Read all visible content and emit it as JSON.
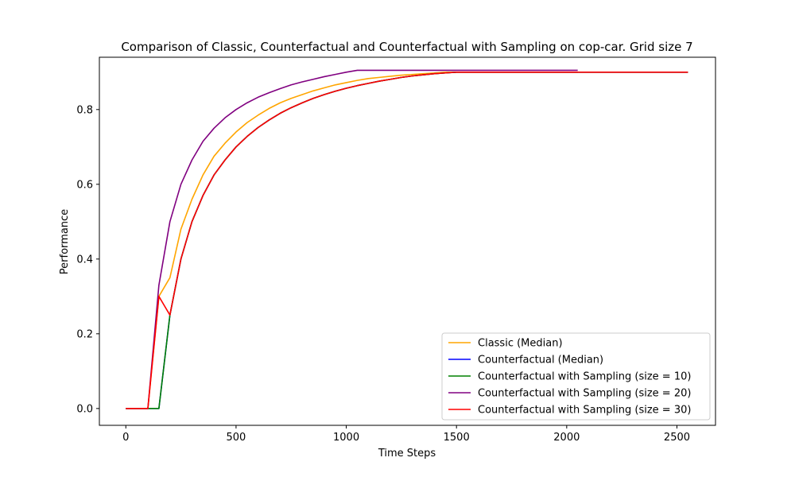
{
  "chart_data": {
    "type": "line",
    "title": "Comparison of Classic, Counterfactual and Counterfactual with Sampling on cop-car. Grid size 7",
    "xlabel": "Time Steps",
    "ylabel": "Performance",
    "xlim": [
      -120,
      2675
    ],
    "ylim": [
      -0.045,
      0.94
    ],
    "xticks": [
      0,
      500,
      1000,
      1500,
      2000,
      2500
    ],
    "yticks": [
      0.0,
      0.2,
      0.4,
      0.6,
      0.8
    ],
    "xtick_labels": [
      "0",
      "500",
      "1000",
      "1500",
      "2000",
      "2500"
    ],
    "ytick_labels": [
      "0.0",
      "0.2",
      "0.4",
      "0.6",
      "0.8"
    ],
    "grid": false,
    "legend_position": "lower-right",
    "series": [
      {
        "name": "Classic (Median)",
        "color": "#ffa500",
        "x": [
          0,
          100,
          150,
          200,
          250,
          300,
          350,
          400,
          450,
          500,
          550,
          600,
          650,
          700,
          750,
          800,
          850,
          900,
          950,
          1000,
          1050,
          1100,
          1150,
          1200,
          1250,
          1300,
          1350,
          1400,
          1450,
          1500,
          1550,
          1600,
          1650,
          1700,
          1750,
          1800,
          1850,
          1900,
          1950,
          2000,
          2050
        ],
        "y": [
          0.0,
          0.0,
          0.3,
          0.35,
          0.48,
          0.56,
          0.625,
          0.675,
          0.71,
          0.74,
          0.765,
          0.785,
          0.803,
          0.818,
          0.83,
          0.84,
          0.85,
          0.858,
          0.866,
          0.872,
          0.878,
          0.883,
          0.886,
          0.889,
          0.892,
          0.894,
          0.896,
          0.898,
          0.9,
          0.9,
          0.9,
          0.9,
          0.9,
          0.9,
          0.9,
          0.9,
          0.9,
          0.9,
          0.9,
          0.9,
          0.9
        ]
      },
      {
        "name": "Counterfactual (Median)",
        "color": "#0000ff",
        "x": [
          0,
          100,
          150,
          200,
          250,
          300,
          350,
          400,
          450,
          500,
          550,
          600,
          650,
          700,
          750,
          800,
          850,
          900,
          950,
          1000,
          1050,
          1100,
          1150,
          1200,
          1250,
          1300,
          1350,
          1400,
          1450,
          1500,
          1550,
          1600,
          1650,
          1700,
          1750,
          1800,
          1850,
          1900,
          1950,
          2000,
          2050,
          2100,
          2150,
          2200,
          2250,
          2300,
          2350,
          2400,
          2450,
          2500,
          2550
        ],
        "y": [
          0.0,
          0.0,
          0.0,
          0.25,
          0.4,
          0.5,
          0.57,
          0.625,
          0.665,
          0.7,
          0.728,
          0.752,
          0.772,
          0.79,
          0.805,
          0.818,
          0.83,
          0.84,
          0.849,
          0.857,
          0.864,
          0.87,
          0.876,
          0.881,
          0.886,
          0.89,
          0.893,
          0.896,
          0.898,
          0.9,
          0.9,
          0.9,
          0.9,
          0.9,
          0.9,
          0.9,
          0.9,
          0.9,
          0.9,
          0.9,
          0.9,
          0.9,
          0.9,
          0.9,
          0.9,
          0.9,
          0.9,
          0.9,
          0.9,
          0.9,
          0.9
        ]
      },
      {
        "name": "Counterfactual with Sampling (size = 10)",
        "color": "#008000",
        "x": [
          0,
          100,
          150,
          200,
          250,
          300,
          350,
          400,
          450,
          500,
          550,
          600,
          650,
          700,
          750,
          800,
          850,
          900,
          950,
          1000,
          1050,
          1100,
          1150,
          1200,
          1250,
          1300,
          1350,
          1400,
          1450,
          1500,
          1550,
          1600,
          1650,
          1700,
          1750,
          1800,
          1850,
          1900,
          1950,
          2000,
          2050,
          2100,
          2150,
          2200,
          2250,
          2300,
          2350,
          2400,
          2450,
          2500,
          2550
        ],
        "y": [
          0.0,
          0.0,
          0.0,
          0.25,
          0.4,
          0.5,
          0.57,
          0.625,
          0.665,
          0.7,
          0.728,
          0.752,
          0.772,
          0.79,
          0.805,
          0.818,
          0.83,
          0.84,
          0.849,
          0.857,
          0.864,
          0.87,
          0.876,
          0.881,
          0.886,
          0.89,
          0.893,
          0.896,
          0.898,
          0.9,
          0.9,
          0.9,
          0.9,
          0.9,
          0.9,
          0.9,
          0.9,
          0.9,
          0.9,
          0.9,
          0.9,
          0.9,
          0.9,
          0.9,
          0.9,
          0.9,
          0.9,
          0.9,
          0.9,
          0.9,
          0.9
        ]
      },
      {
        "name": "Counterfactual with Sampling (size = 20)",
        "color": "#800080",
        "x": [
          0,
          100,
          150,
          200,
          250,
          300,
          350,
          400,
          450,
          500,
          550,
          600,
          650,
          700,
          750,
          800,
          850,
          900,
          950,
          1000,
          1050,
          1100,
          1150,
          1200,
          1250,
          1300,
          1350,
          1400,
          1450,
          1500,
          1550,
          1600,
          1650,
          1700,
          1750,
          1800,
          1850,
          1900,
          1950,
          2000,
          2050
        ],
        "y": [
          0.0,
          0.0,
          0.33,
          0.5,
          0.6,
          0.665,
          0.715,
          0.75,
          0.778,
          0.8,
          0.818,
          0.833,
          0.845,
          0.856,
          0.866,
          0.874,
          0.881,
          0.888,
          0.894,
          0.9,
          0.905,
          0.905,
          0.905,
          0.905,
          0.905,
          0.905,
          0.905,
          0.905,
          0.905,
          0.905,
          0.905,
          0.905,
          0.905,
          0.905,
          0.905,
          0.905,
          0.905,
          0.905,
          0.905,
          0.905,
          0.905
        ]
      },
      {
        "name": "Counterfactual with Sampling (size = 30)",
        "color": "#ff0000",
        "x": [
          0,
          100,
          150,
          200,
          250,
          300,
          350,
          400,
          450,
          500,
          550,
          600,
          650,
          700,
          750,
          800,
          850,
          900,
          950,
          1000,
          1050,
          1100,
          1150,
          1200,
          1250,
          1300,
          1350,
          1400,
          1450,
          1500,
          1550,
          1600,
          1650,
          1700,
          1750,
          1800,
          1850,
          1900,
          1950,
          2000,
          2050,
          2100,
          2150,
          2200,
          2250,
          2300,
          2350,
          2400,
          2450,
          2500,
          2550
        ],
        "y": [
          0.0,
          0.0,
          0.3,
          0.25,
          0.4,
          0.5,
          0.57,
          0.625,
          0.665,
          0.7,
          0.728,
          0.752,
          0.772,
          0.79,
          0.805,
          0.818,
          0.83,
          0.84,
          0.849,
          0.857,
          0.864,
          0.87,
          0.876,
          0.881,
          0.886,
          0.89,
          0.893,
          0.896,
          0.898,
          0.9,
          0.9,
          0.9,
          0.9,
          0.9,
          0.9,
          0.9,
          0.9,
          0.9,
          0.9,
          0.9,
          0.9,
          0.9,
          0.9,
          0.9,
          0.9,
          0.9,
          0.9,
          0.9,
          0.9,
          0.9,
          0.9
        ]
      }
    ]
  }
}
